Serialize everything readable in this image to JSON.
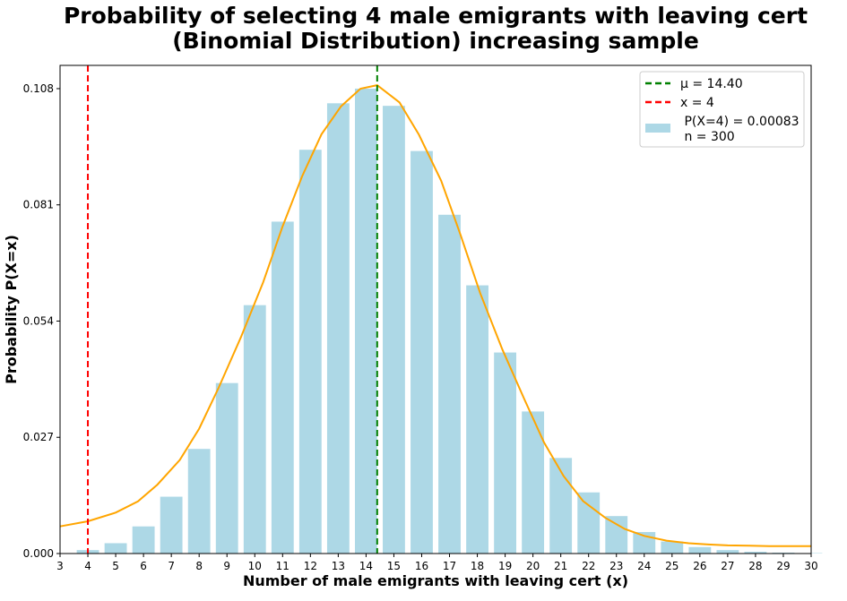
{
  "chart_data": {
    "type": "bar",
    "title": "Probability of selecting 4 male emigrants with leaving cert\n(Binomial Distribution) increasing sample",
    "xlabel": "Number of male emigrants with leaving cert (x)",
    "ylabel": "Probability  P(X=x)",
    "xlim": [
      3,
      30
    ],
    "ylim": [
      0,
      0.1134
    ],
    "x_ticks": [
      3,
      4,
      5,
      6,
      7,
      8,
      9,
      10,
      11,
      12,
      13,
      14,
      15,
      16,
      17,
      18,
      19,
      20,
      21,
      22,
      23,
      24,
      25,
      26,
      27,
      28,
      29,
      30
    ],
    "y_ticks": [
      0.0,
      0.027,
      0.054,
      0.081,
      0.108
    ],
    "y_tick_labels": [
      "0.000",
      "0.027",
      "0.054",
      "0.081",
      "0.108"
    ],
    "grid": false,
    "legend_position": "top-right",
    "bars": {
      "color": "#add8e6",
      "x": [
        4,
        5,
        6,
        7,
        8,
        9,
        10,
        11,
        12,
        13,
        14,
        15,
        16,
        17,
        18,
        19,
        20,
        21,
        22,
        23,
        24,
        25,
        26,
        27,
        28,
        29,
        30
      ],
      "values": [
        0.0008,
        0.0024,
        0.0063,
        0.0132,
        0.0243,
        0.0396,
        0.0577,
        0.0771,
        0.0938,
        0.1046,
        0.108,
        0.104,
        0.0935,
        0.0787,
        0.0623,
        0.0467,
        0.033,
        0.0222,
        0.0142,
        0.0087,
        0.005,
        0.0028,
        0.0015,
        0.0008,
        0.0004,
        0.0002,
        0.0001
      ]
    },
    "curve": {
      "color": "#ffa500",
      "x": [
        3,
        4,
        5,
        5.8,
        6.5,
        7.3,
        8,
        8.7,
        9.5,
        10.3,
        11,
        11.7,
        12.4,
        13.1,
        13.8,
        14.4,
        15.2,
        15.9,
        16.7,
        17.4,
        18.1,
        18.9,
        19.7,
        20.4,
        21.1,
        21.8,
        22.6,
        23.3,
        24,
        24.8,
        25.6,
        26.3,
        27,
        27.8,
        28.5,
        29.3,
        30
      ],
      "values": [
        0.0063,
        0.0075,
        0.0095,
        0.0121,
        0.016,
        0.0217,
        0.029,
        0.0385,
        0.0502,
        0.063,
        0.076,
        0.0876,
        0.0974,
        0.1039,
        0.108,
        0.1088,
        0.1048,
        0.0973,
        0.0866,
        0.074,
        0.0605,
        0.0474,
        0.0357,
        0.0258,
        0.018,
        0.0122,
        0.0083,
        0.0057,
        0.0041,
        0.003,
        0.0024,
        0.0021,
        0.0019,
        0.0018,
        0.0017,
        0.0017,
        0.0017
      ]
    },
    "mean_line": {
      "x": 14.4,
      "color": "#008000",
      "label": "μ  = 14.40"
    },
    "x_line": {
      "x": 4,
      "color": "#ff0000",
      "label": "x = 4"
    },
    "legend": {
      "mean": "μ  = 14.40",
      "xval": "x = 4",
      "bars_line1": " P(X=4) = 0.00083",
      "bars_line2": " n = 300"
    }
  }
}
